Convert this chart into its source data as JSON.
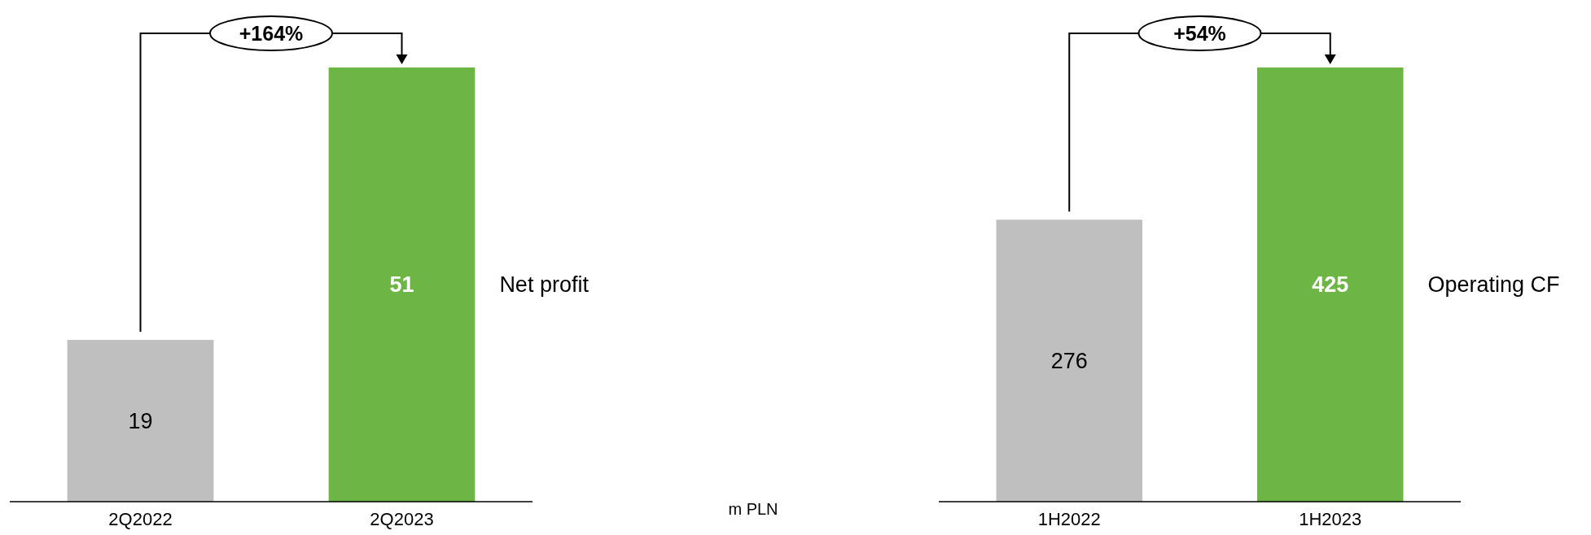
{
  "chart_data": [
    {
      "type": "bar",
      "categories": [
        "2Q2022",
        "2Q2023"
      ],
      "series": [
        {
          "name": "Net profit",
          "values": [
            19,
            51
          ],
          "colors": [
            "#bfbfbf",
            "#6db545"
          ]
        }
      ],
      "data_labels": true,
      "annotations": [
        "+164%",
        "m PLN"
      ]
    },
    {
      "type": "bar",
      "categories": [
        "1H2022",
        "1H2023"
      ],
      "series": [
        {
          "name": "Operating CF",
          "values": [
            276,
            425
          ],
          "colors": [
            "#bfbfbf",
            "#6db545"
          ]
        }
      ],
      "data_labels": true,
      "annotations": [
        "+54%"
      ]
    }
  ]
}
